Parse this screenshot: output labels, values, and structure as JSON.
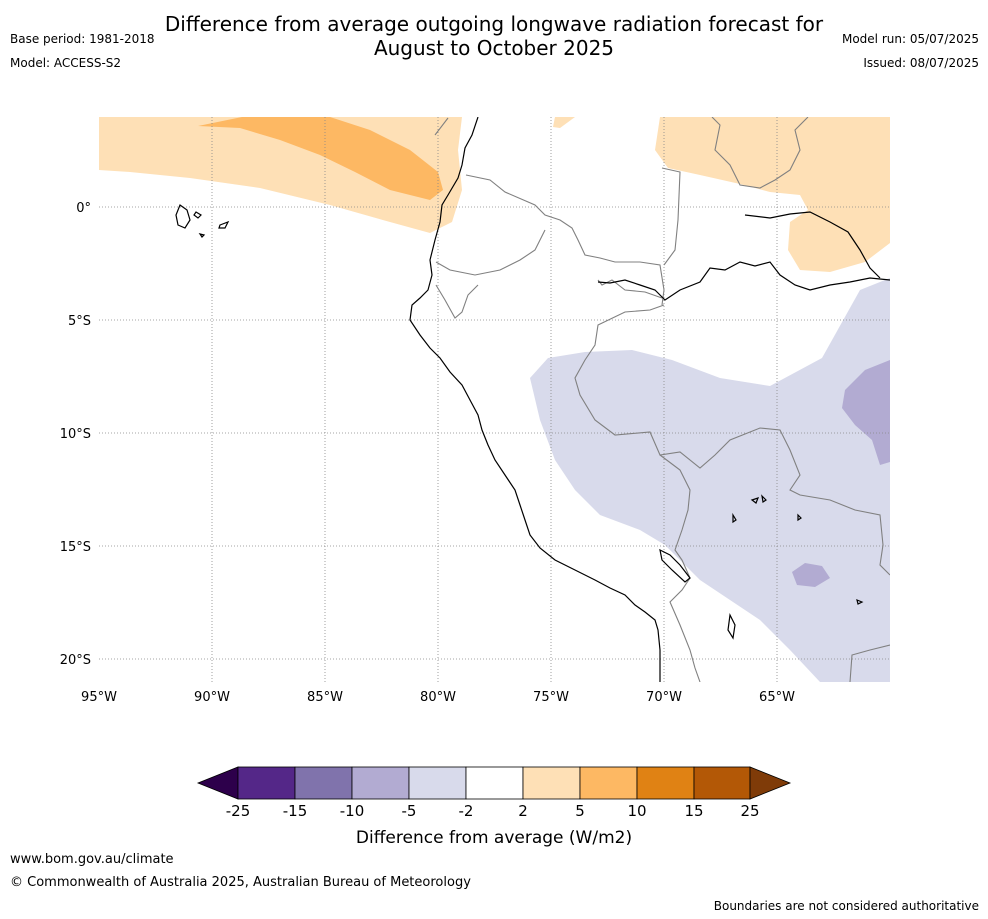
{
  "header": {
    "title_line1": "Difference from average outgoing longwave radiation forecast for",
    "title_line2": "August to October 2025",
    "base_period": "Base period: 1981-2018",
    "model": "Model: ACCESS-S2",
    "model_run": "Model run: 05/07/2025",
    "issued": "Issued: 08/07/2025"
  },
  "map": {
    "lon_labels": [
      "95°W",
      "90°W",
      "85°W",
      "80°W",
      "75°W",
      "70°W",
      "65°W"
    ],
    "lat_labels": [
      "0°",
      "5°S",
      "10°S",
      "15°S",
      "20°S"
    ]
  },
  "colorbar": {
    "label": "Difference from average (W/m2)",
    "ticks": [
      "-25",
      "-15",
      "-10",
      "-5",
      "-2",
      "2",
      "5",
      "10",
      "15",
      "25"
    ],
    "colors": {
      "lt_-25": "#2d004b",
      "-25_-15": "#542788",
      "-15_-10": "#8073ac",
      "-10_-5": "#b2abd2",
      "-5_-2": "#d8daeb",
      "-2_2": "#ffffff",
      "2_5": "#fee0b6",
      "5_10": "#fdb863",
      "10_15": "#e08214",
      "15_25": "#b35806",
      "gt_25": "#7f3b08"
    }
  },
  "footer": {
    "url": "www.bom.gov.au/climate",
    "copyright": "© Commonwealth of Australia 2025, Australian Bureau of Meteorology",
    "note": "Boundaries are not considered authoritative"
  }
}
